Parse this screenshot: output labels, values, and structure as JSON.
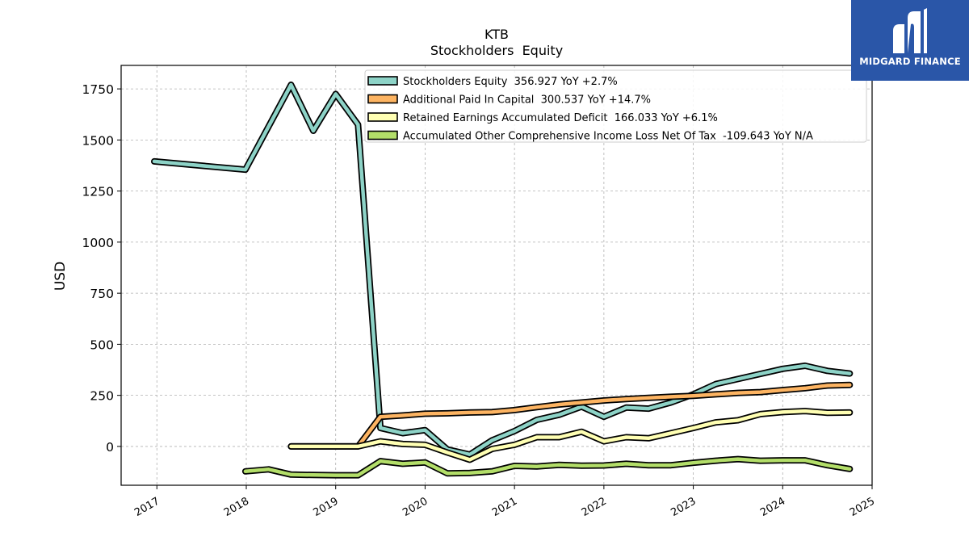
{
  "chart_data": {
    "type": "line",
    "title": "KTB",
    "subtitle": "Stockholders  Equity",
    "ylabel": "USD",
    "xlabel": "",
    "xlim": [
      2016.6,
      2025.0
    ],
    "ylim": [
      -190,
      1865
    ],
    "grid": true,
    "legend_position": "top-right",
    "x_ticks": [
      "2017",
      "2018",
      "2019",
      "2020",
      "2021",
      "2022",
      "2023",
      "2024",
      "2025"
    ],
    "y_ticks": [
      "0",
      "250",
      "500",
      "750",
      "1000",
      "1250",
      "1500",
      "1750"
    ],
    "series": [
      {
        "name": "Stockholders Equity",
        "legend": "Stockholders Equity  356.927 YoY +2.7%",
        "color": "#8dd3c7",
        "x": [
          2016.97,
          2017.99,
          2018.5,
          2018.75,
          2019.0,
          2019.25,
          2019.5,
          2019.75,
          2020.0,
          2020.25,
          2020.5,
          2020.75,
          2021.0,
          2021.25,
          2021.5,
          2021.75,
          2022.0,
          2022.25,
          2022.5,
          2022.75,
          2023.0,
          2023.25,
          2023.5,
          2023.75,
          2024.0,
          2024.25,
          2024.5,
          2024.75
        ],
        "y": [
          1395,
          1355,
          1770,
          1545,
          1725,
          1575,
          90,
          65,
          80,
          -15,
          -40,
          30,
          75,
          130,
          155,
          195,
          145,
          190,
          185,
          215,
          255,
          305,
          330,
          355,
          380,
          395,
          370,
          357
        ]
      },
      {
        "name": "Additional Paid In Capital",
        "legend": "Additional Paid In Capital  300.537 YoY +14.7%",
        "color": "#fdb462",
        "x": [
          2018.5,
          2018.75,
          2019.0,
          2019.25,
          2019.5,
          2019.75,
          2020.0,
          2020.25,
          2020.5,
          2020.75,
          2021.0,
          2021.25,
          2021.5,
          2021.75,
          2022.0,
          2022.25,
          2022.5,
          2022.75,
          2023.0,
          2023.25,
          2023.5,
          2023.75,
          2024.0,
          2024.25,
          2024.5,
          2024.75
        ],
        "y": [
          0,
          0,
          0,
          0,
          145,
          152,
          160,
          162,
          166,
          168,
          178,
          192,
          205,
          215,
          225,
          232,
          238,
          243,
          248,
          255,
          262,
          266,
          276,
          285,
          298,
          301
        ]
      },
      {
        "name": "Retained Earnings Accumulated Deficit",
        "legend": "Retained Earnings Accumulated Deficit  166.033 YoY +6.1%",
        "color": "#ffffb3",
        "x": [
          2018.5,
          2018.75,
          2019.0,
          2019.25,
          2019.5,
          2019.75,
          2020.0,
          2020.25,
          2020.5,
          2020.75,
          2021.0,
          2021.25,
          2021.5,
          2021.75,
          2022.0,
          2022.25,
          2022.5,
          2022.75,
          2023.0,
          2023.25,
          2023.5,
          2023.75,
          2024.0,
          2024.25,
          2024.5,
          2024.75
        ],
        "y": [
          0,
          0,
          0,
          0,
          25,
          12,
          8,
          -30,
          -65,
          -12,
          8,
          45,
          45,
          72,
          25,
          45,
          40,
          65,
          90,
          118,
          128,
          158,
          168,
          173,
          165,
          166
        ]
      },
      {
        "name": "Accumulated Other Comprehensive Income Loss Net Of Tax",
        "legend": "Accumulated Other Comprehensive Income Loss Net Of Tax  -109.643 YoY N/A",
        "color": "#b3de69",
        "x": [
          2017.99,
          2018.25,
          2018.5,
          2018.75,
          2019.0,
          2019.25,
          2019.5,
          2019.75,
          2020.0,
          2020.25,
          2020.5,
          2020.75,
          2021.0,
          2021.25,
          2021.5,
          2021.75,
          2022.0,
          2022.25,
          2022.5,
          2022.75,
          2023.0,
          2023.25,
          2023.5,
          2023.75,
          2024.0,
          2024.25,
          2024.5,
          2024.75
        ],
        "y": [
          -122,
          -112,
          -138,
          -140,
          -141,
          -141,
          -72,
          -85,
          -78,
          -132,
          -130,
          -122,
          -95,
          -98,
          -90,
          -94,
          -93,
          -85,
          -92,
          -92,
          -80,
          -70,
          -62,
          -70,
          -68,
          -68,
          -92,
          -110
        ]
      }
    ]
  },
  "logo": {
    "text": "MIDGARD FINANCE",
    "background": "#2a56a8"
  }
}
